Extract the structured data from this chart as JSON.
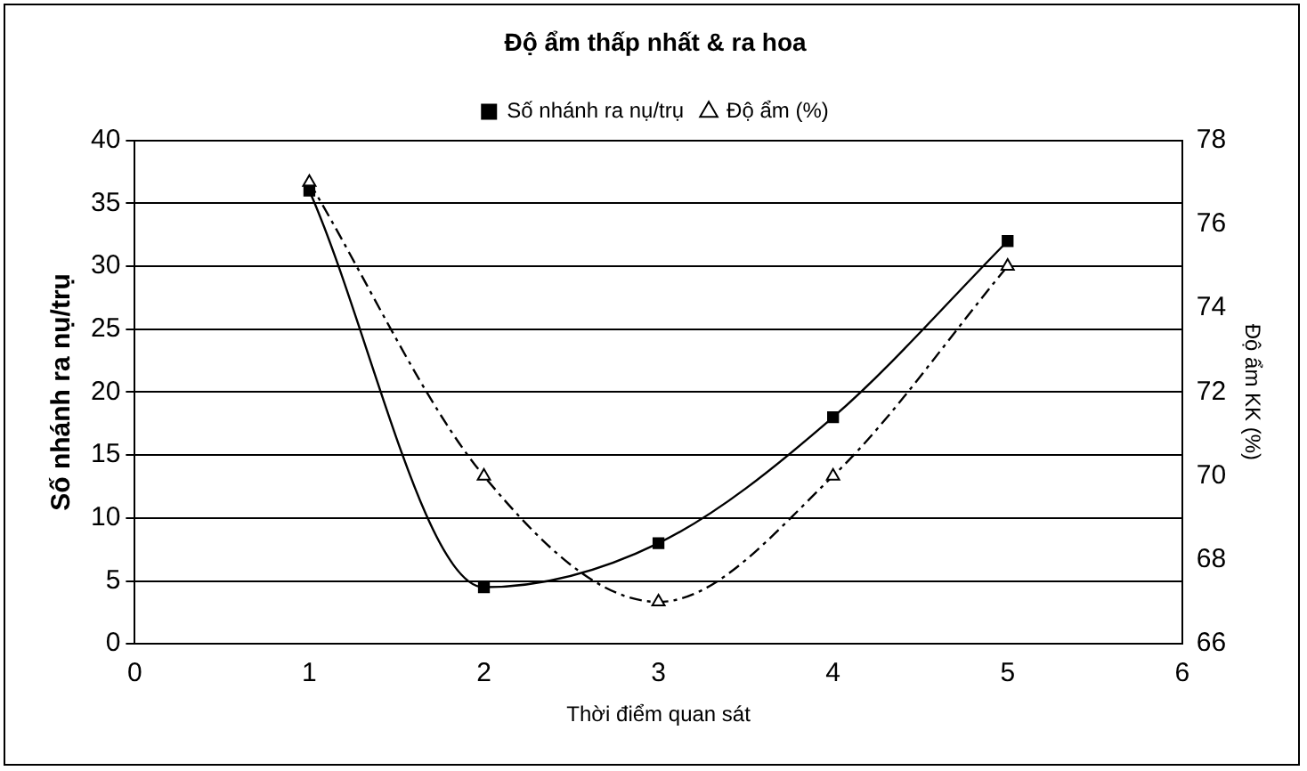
{
  "chart_data": {
    "type": "line",
    "title": "Độ ẩm thấp nhất & ra hoa",
    "xlabel": "Thời điểm quan sát",
    "ylabel": "Số nhánh ra nụ/trụ",
    "y2label": "Độ ẩm KK (%)",
    "x": [
      1,
      2,
      3,
      4,
      5
    ],
    "series": [
      {
        "name": "Số nhánh ra nụ/trụ",
        "color": "#000000",
        "values": [
          36,
          4.5,
          8,
          18,
          32
        ],
        "marker": "square",
        "line_style": "solid"
      },
      {
        "name": "Độ ẩm (%)",
        "color": "#000000",
        "values": [
          77,
          70,
          67,
          70,
          75
        ],
        "axis": "y2",
        "marker": "triangle",
        "line_style": "dashed"
      }
    ],
    "xlim": [
      0,
      6
    ],
    "xticks": [
      0,
      1,
      2,
      3,
      4,
      5,
      6
    ],
    "ylim": [
      0,
      40
    ],
    "yticks": [
      0,
      5,
      10,
      15,
      20,
      25,
      30,
      35,
      40
    ],
    "y2lim": [
      66,
      78
    ],
    "y2ticks": [
      66,
      68,
      70,
      72,
      74,
      76,
      78
    ],
    "grid": "y",
    "legend": "top"
  }
}
